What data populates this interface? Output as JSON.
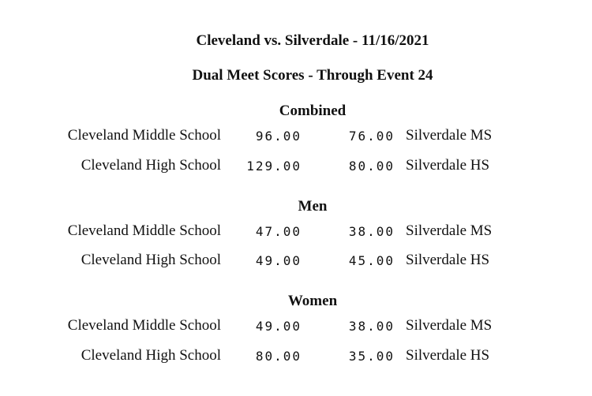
{
  "header": {
    "title": "Cleveland vs. Silverdale - 11/16/2021",
    "subtitle": "Dual Meet Scores - Through Event 24"
  },
  "sections": [
    {
      "heading": "Combined",
      "rows": [
        {
          "home_team": "Cleveland Middle School",
          "home_score": "96.00",
          "away_score": "76.00",
          "away_team": "Silverdale MS"
        },
        {
          "home_team": "Cleveland High School",
          "home_score": "129.00",
          "away_score": "80.00",
          "away_team": "Silverdale HS"
        }
      ]
    },
    {
      "heading": "Men",
      "rows": [
        {
          "home_team": "Cleveland Middle School",
          "home_score": "47.00",
          "away_score": "38.00",
          "away_team": "Silverdale MS"
        },
        {
          "home_team": "Cleveland High School",
          "home_score": "49.00",
          "away_score": "45.00",
          "away_team": "Silverdale HS"
        }
      ]
    },
    {
      "heading": "Women",
      "rows": [
        {
          "home_team": "Cleveland Middle School",
          "home_score": "49.00",
          "away_score": "38.00",
          "away_team": "Silverdale MS"
        },
        {
          "home_team": "Cleveland High School",
          "home_score": "80.00",
          "away_score": "35.00",
          "away_team": "Silverdale HS"
        }
      ]
    }
  ]
}
